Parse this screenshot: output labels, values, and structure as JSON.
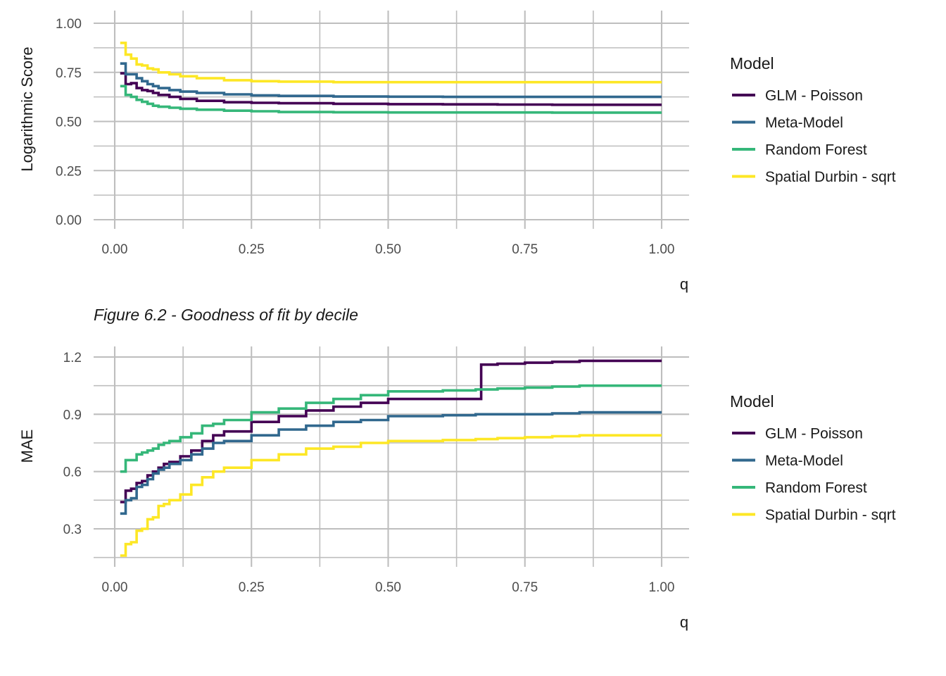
{
  "caption": "Figure 6.2 - Goodness of fit by decile",
  "colors": {
    "GLM - Poisson": "#440154",
    "Meta-Model": "#31688e",
    "Random Forest": "#35b779",
    "Spatial Durbin - sqrt": "#fde725"
  },
  "chart_data": [
    {
      "type": "line",
      "xlabel": "q",
      "ylabel": "Logarithmic Score",
      "xlim": [
        0,
        1
      ],
      "ylim": [
        0,
        1
      ],
      "xticks": [
        "0.00",
        "0.25",
        "0.50",
        "0.75",
        "1.00"
      ],
      "yticks": [
        "0.00",
        "0.25",
        "0.50",
        "0.75",
        "1.00"
      ],
      "ytick_values": [
        0,
        0.25,
        0.5,
        0.75,
        1.0
      ],
      "grid": true,
      "legend": {
        "title": "Model",
        "position": "right"
      },
      "series": [
        {
          "name": "GLM - Poisson",
          "x": [
            0.01,
            0.02,
            0.03,
            0.04,
            0.05,
            0.06,
            0.07,
            0.08,
            0.1,
            0.12,
            0.15,
            0.2,
            0.25,
            0.3,
            0.4,
            0.5,
            0.6,
            0.7,
            0.8,
            0.9,
            1.0
          ],
          "y": [
            0.745,
            0.69,
            0.695,
            0.67,
            0.66,
            0.655,
            0.645,
            0.635,
            0.625,
            0.615,
            0.605,
            0.598,
            0.595,
            0.593,
            0.59,
            0.588,
            0.587,
            0.586,
            0.585,
            0.585,
            0.585
          ]
        },
        {
          "name": "Meta-Model",
          "x": [
            0.01,
            0.02,
            0.03,
            0.04,
            0.05,
            0.06,
            0.07,
            0.08,
            0.1,
            0.12,
            0.15,
            0.2,
            0.25,
            0.3,
            0.4,
            0.5,
            0.6,
            0.7,
            0.8,
            0.9,
            1.0
          ],
          "y": [
            0.795,
            0.74,
            0.74,
            0.72,
            0.705,
            0.69,
            0.68,
            0.67,
            0.66,
            0.652,
            0.645,
            0.638,
            0.633,
            0.63,
            0.627,
            0.626,
            0.625,
            0.625,
            0.625,
            0.625,
            0.625
          ]
        },
        {
          "name": "Random Forest",
          "x": [
            0.01,
            0.02,
            0.03,
            0.04,
            0.05,
            0.06,
            0.07,
            0.08,
            0.1,
            0.12,
            0.15,
            0.2,
            0.25,
            0.3,
            0.4,
            0.5,
            0.6,
            0.7,
            0.8,
            0.9,
            1.0
          ],
          "y": [
            0.68,
            0.635,
            0.625,
            0.61,
            0.6,
            0.59,
            0.58,
            0.575,
            0.57,
            0.565,
            0.56,
            0.555,
            0.552,
            0.548,
            0.547,
            0.546,
            0.546,
            0.546,
            0.545,
            0.545,
            0.545
          ]
        },
        {
          "name": "Spatial Durbin - sqrt",
          "x": [
            0.01,
            0.02,
            0.03,
            0.04,
            0.05,
            0.06,
            0.07,
            0.08,
            0.1,
            0.12,
            0.15,
            0.2,
            0.25,
            0.3,
            0.4,
            0.5,
            0.6,
            0.7,
            0.8,
            0.9,
            1.0
          ],
          "y": [
            0.9,
            0.84,
            0.82,
            0.79,
            0.785,
            0.77,
            0.765,
            0.75,
            0.74,
            0.73,
            0.72,
            0.71,
            0.705,
            0.703,
            0.7,
            0.7,
            0.7,
            0.7,
            0.7,
            0.7,
            0.7
          ]
        }
      ]
    },
    {
      "type": "line",
      "xlabel": "q",
      "ylabel": "MAE",
      "xlim": [
        0,
        1
      ],
      "ylim": [
        0.15,
        1.2
      ],
      "xticks": [
        "0.00",
        "0.25",
        "0.50",
        "0.75",
        "1.00"
      ],
      "yticks": [
        "0.3",
        "0.6",
        "0.9",
        "1.2"
      ],
      "ytick_values": [
        0.3,
        0.6,
        0.9,
        1.2
      ],
      "grid": true,
      "legend": {
        "title": "Model",
        "position": "right"
      },
      "series": [
        {
          "name": "GLM - Poisson",
          "x": [
            0.01,
            0.02,
            0.03,
            0.04,
            0.05,
            0.06,
            0.07,
            0.08,
            0.09,
            0.1,
            0.12,
            0.14,
            0.16,
            0.18,
            0.2,
            0.25,
            0.3,
            0.35,
            0.4,
            0.45,
            0.5,
            0.55,
            0.6,
            0.66,
            0.67,
            0.7,
            0.75,
            0.8,
            0.85,
            0.9,
            1.0
          ],
          "y": [
            0.44,
            0.5,
            0.51,
            0.54,
            0.55,
            0.58,
            0.6,
            0.62,
            0.64,
            0.65,
            0.68,
            0.71,
            0.76,
            0.79,
            0.81,
            0.86,
            0.89,
            0.92,
            0.94,
            0.96,
            0.98,
            0.98,
            0.98,
            0.98,
            1.16,
            1.165,
            1.17,
            1.175,
            1.18,
            1.18,
            1.18
          ]
        },
        {
          "name": "Meta-Model",
          "x": [
            0.01,
            0.02,
            0.03,
            0.04,
            0.05,
            0.06,
            0.07,
            0.08,
            0.09,
            0.1,
            0.12,
            0.14,
            0.16,
            0.18,
            0.2,
            0.25,
            0.3,
            0.35,
            0.4,
            0.45,
            0.5,
            0.55,
            0.6,
            0.66,
            0.7,
            0.75,
            0.8,
            0.85,
            0.9,
            1.0
          ],
          "y": [
            0.38,
            0.45,
            0.46,
            0.52,
            0.53,
            0.56,
            0.59,
            0.61,
            0.62,
            0.64,
            0.66,
            0.69,
            0.72,
            0.75,
            0.76,
            0.79,
            0.82,
            0.84,
            0.86,
            0.87,
            0.89,
            0.89,
            0.895,
            0.9,
            0.9,
            0.9,
            0.905,
            0.91,
            0.91,
            0.91
          ]
        },
        {
          "name": "Random Forest",
          "x": [
            0.01,
            0.02,
            0.03,
            0.04,
            0.05,
            0.06,
            0.07,
            0.08,
            0.09,
            0.1,
            0.12,
            0.14,
            0.16,
            0.18,
            0.2,
            0.25,
            0.3,
            0.35,
            0.4,
            0.45,
            0.5,
            0.55,
            0.6,
            0.66,
            0.7,
            0.75,
            0.8,
            0.85,
            0.9,
            1.0
          ],
          "y": [
            0.6,
            0.66,
            0.66,
            0.69,
            0.7,
            0.71,
            0.72,
            0.74,
            0.75,
            0.76,
            0.78,
            0.8,
            0.84,
            0.85,
            0.87,
            0.91,
            0.93,
            0.96,
            0.98,
            1.0,
            1.02,
            1.02,
            1.025,
            1.03,
            1.035,
            1.04,
            1.045,
            1.05,
            1.05,
            1.05
          ]
        },
        {
          "name": "Spatial Durbin - sqrt",
          "x": [
            0.01,
            0.02,
            0.03,
            0.04,
            0.05,
            0.06,
            0.07,
            0.08,
            0.09,
            0.1,
            0.12,
            0.14,
            0.16,
            0.18,
            0.2,
            0.25,
            0.3,
            0.35,
            0.4,
            0.45,
            0.5,
            0.55,
            0.6,
            0.66,
            0.7,
            0.75,
            0.8,
            0.85,
            0.9,
            1.0
          ],
          "y": [
            0.16,
            0.22,
            0.23,
            0.29,
            0.3,
            0.35,
            0.36,
            0.42,
            0.43,
            0.45,
            0.48,
            0.53,
            0.57,
            0.6,
            0.62,
            0.66,
            0.69,
            0.72,
            0.73,
            0.75,
            0.76,
            0.76,
            0.765,
            0.77,
            0.775,
            0.78,
            0.785,
            0.79,
            0.79,
            0.79
          ]
        }
      ]
    }
  ]
}
